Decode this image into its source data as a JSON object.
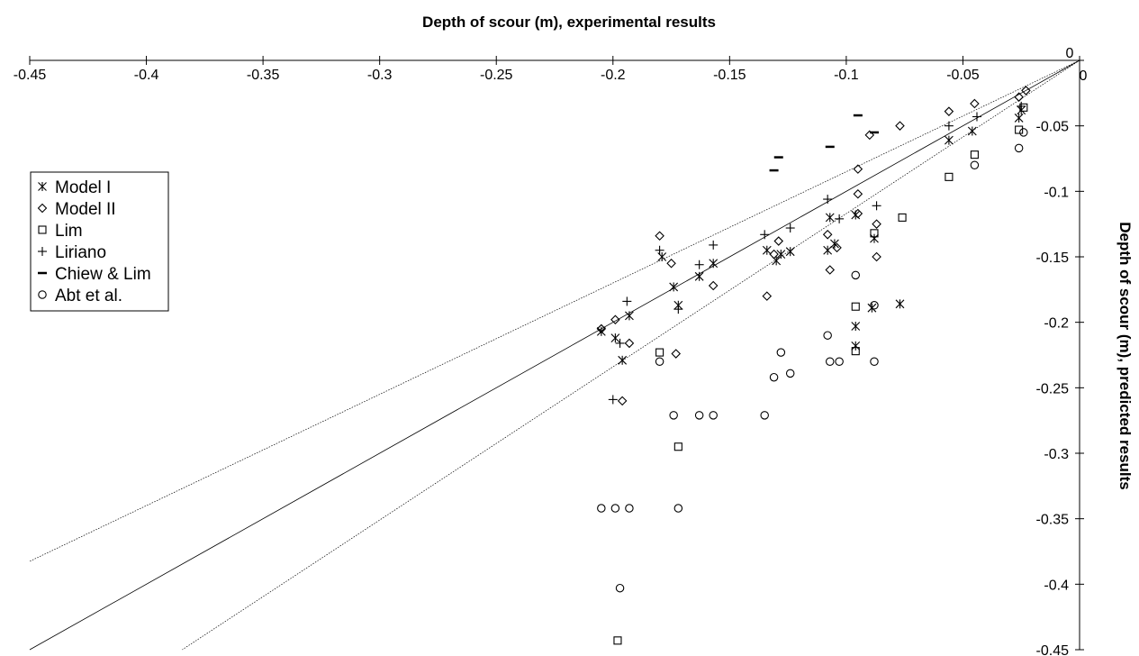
{
  "chart_data": {
    "type": "scatter",
    "title": "",
    "xlabel": "Depth of scour (m), experimental results",
    "ylabel": "Depth of scour (m), predicted results",
    "xlim": [
      -0.45,
      0
    ],
    "ylim": [
      -0.45,
      0
    ],
    "x_axis_position": "top",
    "y_axis_position": "right",
    "x_ticks": [
      -0.45,
      -0.4,
      -0.35,
      -0.3,
      -0.25,
      -0.2,
      -0.15,
      -0.1,
      -0.05,
      0
    ],
    "y_ticks": [
      0,
      -0.05,
      -0.1,
      -0.15,
      -0.2,
      -0.25,
      -0.3,
      -0.35,
      -0.4,
      -0.45
    ],
    "x_tick_labels": [
      "-0.45",
      "-0.4",
      "-0.35",
      "-0.3",
      "-0.25",
      "-0.2",
      "-0.15",
      "-0.1",
      "-0.05",
      "0"
    ],
    "y_tick_labels": [
      "0",
      "-0.05",
      "-0.1",
      "-0.15",
      "-0.2",
      "-0.25",
      "-0.3",
      "-0.35",
      "-0.4",
      "-0.45"
    ],
    "grid": false,
    "legend_position": "left",
    "reference_lines": [
      {
        "slope": 1.0,
        "style": "solid"
      },
      {
        "slope": 0.85,
        "style": "dotted"
      },
      {
        "slope": 1.17,
        "style": "dotted"
      }
    ],
    "series": [
      {
        "name": "Model I",
        "marker": "asterisk",
        "points": [
          [
            -0.025,
            -0.038
          ],
          [
            -0.026,
            -0.044
          ],
          [
            -0.046,
            -0.054
          ],
          [
            -0.056,
            -0.061
          ],
          [
            -0.088,
            -0.136
          ],
          [
            -0.089,
            -0.189
          ],
          [
            -0.096,
            -0.118
          ],
          [
            -0.096,
            -0.203
          ],
          [
            -0.096,
            -0.218
          ],
          [
            -0.077,
            -0.186
          ],
          [
            -0.105,
            -0.14
          ],
          [
            -0.107,
            -0.12
          ],
          [
            -0.108,
            -0.145
          ],
          [
            -0.124,
            -0.146
          ],
          [
            -0.128,
            -0.148
          ],
          [
            -0.13,
            -0.153
          ],
          [
            -0.134,
            -0.145
          ],
          [
            -0.157,
            -0.155
          ],
          [
            -0.163,
            -0.165
          ],
          [
            -0.172,
            -0.187
          ],
          [
            -0.174,
            -0.173
          ],
          [
            -0.179,
            -0.15
          ],
          [
            -0.193,
            -0.195
          ],
          [
            -0.196,
            -0.229
          ],
          [
            -0.199,
            -0.212
          ],
          [
            -0.205,
            -0.207
          ]
        ]
      },
      {
        "name": "Model II",
        "marker": "diamond",
        "points": [
          [
            -0.023,
            -0.023
          ],
          [
            -0.026,
            -0.028
          ],
          [
            -0.045,
            -0.033
          ],
          [
            -0.056,
            -0.039
          ],
          [
            -0.077,
            -0.05
          ],
          [
            -0.09,
            -0.057
          ],
          [
            -0.087,
            -0.125
          ],
          [
            -0.087,
            -0.15
          ],
          [
            -0.095,
            -0.083
          ],
          [
            -0.095,
            -0.102
          ],
          [
            -0.095,
            -0.117
          ],
          [
            -0.104,
            -0.143
          ],
          [
            -0.108,
            -0.133
          ],
          [
            -0.107,
            -0.16
          ],
          [
            -0.129,
            -0.138
          ],
          [
            -0.131,
            -0.148
          ],
          [
            -0.134,
            -0.18
          ],
          [
            -0.157,
            -0.172
          ],
          [
            -0.173,
            -0.224
          ],
          [
            -0.175,
            -0.155
          ],
          [
            -0.18,
            -0.134
          ],
          [
            -0.193,
            -0.216
          ],
          [
            -0.196,
            -0.26
          ],
          [
            -0.199,
            -0.198
          ],
          [
            -0.205,
            -0.205
          ]
        ]
      },
      {
        "name": "Lim",
        "marker": "square",
        "points": [
          [
            -0.024,
            -0.036
          ],
          [
            -0.026,
            -0.053
          ],
          [
            -0.045,
            -0.072
          ],
          [
            -0.056,
            -0.089
          ],
          [
            -0.076,
            -0.12
          ],
          [
            -0.088,
            -0.132
          ],
          [
            -0.096,
            -0.188
          ],
          [
            -0.096,
            -0.222
          ],
          [
            -0.172,
            -0.295
          ],
          [
            -0.18,
            -0.223
          ],
          [
            -0.198,
            -0.443
          ]
        ]
      },
      {
        "name": "Liriano",
        "marker": "plus",
        "points": [
          [
            -0.025,
            -0.035
          ],
          [
            -0.044,
            -0.043
          ],
          [
            -0.056,
            -0.05
          ],
          [
            -0.087,
            -0.111
          ],
          [
            -0.103,
            -0.121
          ],
          [
            -0.108,
            -0.106
          ],
          [
            -0.124,
            -0.128
          ],
          [
            -0.135,
            -0.133
          ],
          [
            -0.157,
            -0.141
          ],
          [
            -0.163,
            -0.156
          ],
          [
            -0.172,
            -0.19
          ],
          [
            -0.18,
            -0.145
          ],
          [
            -0.194,
            -0.184
          ],
          [
            -0.197,
            -0.216
          ],
          [
            -0.2,
            -0.259
          ]
        ]
      },
      {
        "name": "Chiew & Lim",
        "marker": "dash",
        "points": [
          [
            -0.088,
            -0.055
          ],
          [
            -0.095,
            -0.042
          ],
          [
            -0.107,
            -0.066
          ],
          [
            -0.129,
            -0.074
          ],
          [
            -0.131,
            -0.084
          ]
        ]
      },
      {
        "name": "Abt et al.",
        "marker": "circle",
        "points": [
          [
            -0.024,
            -0.055
          ],
          [
            -0.026,
            -0.067
          ],
          [
            -0.045,
            -0.08
          ],
          [
            -0.088,
            -0.187
          ],
          [
            -0.088,
            -0.23
          ],
          [
            -0.096,
            -0.164
          ],
          [
            -0.103,
            -0.23
          ],
          [
            -0.107,
            -0.23
          ],
          [
            -0.108,
            -0.21
          ],
          [
            -0.124,
            -0.239
          ],
          [
            -0.128,
            -0.223
          ],
          [
            -0.131,
            -0.242
          ],
          [
            -0.135,
            -0.271
          ],
          [
            -0.157,
            -0.271
          ],
          [
            -0.163,
            -0.271
          ],
          [
            -0.172,
            -0.342
          ],
          [
            -0.174,
            -0.271
          ],
          [
            -0.18,
            -0.23
          ],
          [
            -0.193,
            -0.342
          ],
          [
            -0.197,
            -0.403
          ],
          [
            -0.199,
            -0.342
          ],
          [
            -0.205,
            -0.342
          ]
        ]
      }
    ]
  }
}
